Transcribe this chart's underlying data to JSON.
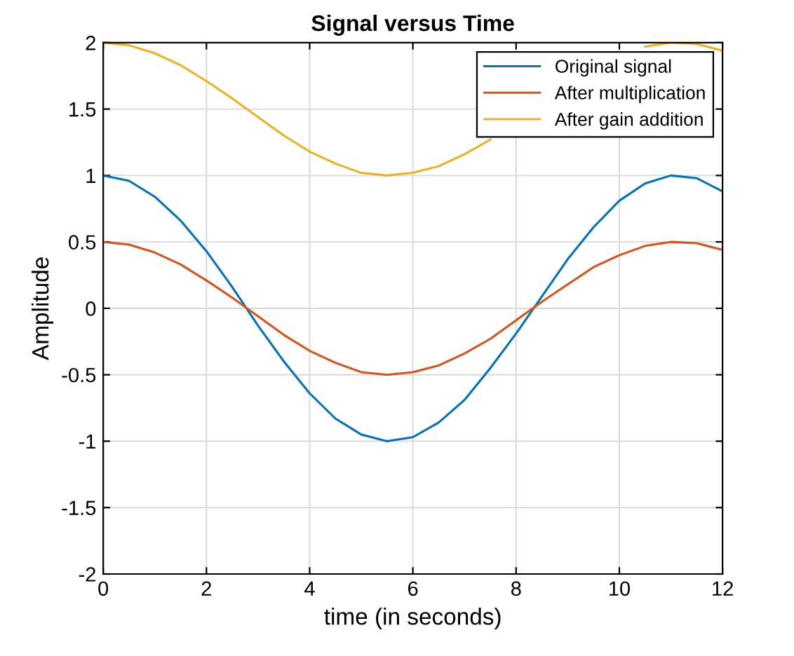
{
  "chart_data": {
    "type": "line",
    "title": "Signal versus Time",
    "xlabel": "time (in seconds)",
    "ylabel": "Amplitude",
    "x": [
      0,
      0.5,
      1,
      1.5,
      2,
      2.5,
      3,
      3.5,
      4,
      4.5,
      5,
      5.5,
      6,
      6.5,
      7,
      7.5,
      8,
      8.5,
      9,
      9.5,
      10,
      10.5,
      11,
      11.5,
      12
    ],
    "series": [
      {
        "name": "Original signal",
        "color": "#0072bd",
        "values": [
          1,
          0.96,
          0.84,
          0.66,
          0.43,
          0.16,
          -0.13,
          -0.4,
          -0.64,
          -0.83,
          -0.95,
          -1,
          -0.97,
          -0.86,
          -0.69,
          -0.45,
          -0.19,
          0.09,
          0.37,
          0.61,
          0.81,
          0.94,
          1,
          0.98,
          0.88
        ]
      },
      {
        "name": "After multiplication",
        "color": "#d95319",
        "values": [
          0.5,
          0.48,
          0.42,
          0.33,
          0.21,
          0.08,
          -0.06,
          -0.2,
          -0.32,
          -0.41,
          -0.48,
          -0.5,
          -0.48,
          -0.43,
          -0.34,
          -0.23,
          -0.09,
          0.05,
          0.18,
          0.31,
          0.4,
          0.47,
          0.5,
          0.49,
          0.44
        ]
      },
      {
        "name": "After gain addition",
        "color": "#edb120",
        "values": [
          2,
          1.98,
          1.92,
          1.83,
          1.71,
          1.58,
          1.44,
          1.3,
          1.18,
          1.09,
          1.02,
          1,
          1.02,
          1.07,
          1.16,
          1.27,
          null,
          null,
          null,
          null,
          null,
          1.97,
          2,
          1.99,
          1.94
        ]
      }
    ],
    "xlim": [
      0,
      12
    ],
    "xticks": [
      0,
      2,
      4,
      6,
      8,
      10,
      12
    ],
    "ylim": [
      -2,
      2
    ],
    "yticks": [
      -2,
      -1.5,
      -1,
      -0.5,
      0,
      0.5,
      1,
      1.5,
      2
    ],
    "grid": true,
    "legend": "top right",
    "marker": "none",
    "line_style": "solid"
  }
}
